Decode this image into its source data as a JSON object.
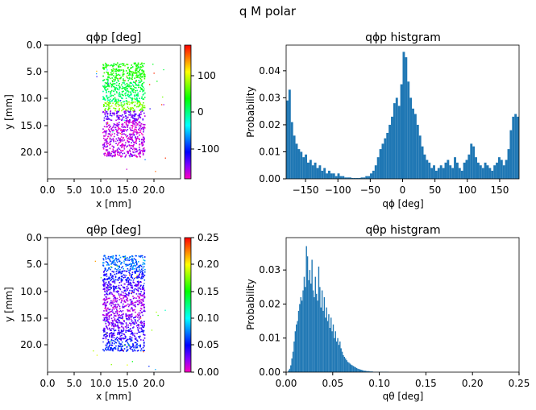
{
  "figure": {
    "title": "q M polar"
  },
  "colors": {
    "bar": "#1f77b4",
    "hsv_stops": [
      "#ff00bf",
      "#8000ff",
      "#0000ff",
      "#0080ff",
      "#00ffff",
      "#00ff80",
      "#00ff00",
      "#80ff00",
      "#ffff00",
      "#ff8000",
      "#ff0000"
    ]
  },
  "chart_data": [
    {
      "type": "heatmap",
      "title": "qϕp [deg]",
      "xlabel": "x [mm]",
      "ylabel": "y [mm]",
      "xlim": [
        0,
        25
      ],
      "ylim": [
        25,
        0
      ],
      "x_ticks": [
        "0.0",
        "5.0",
        "10.0",
        "15.0",
        "20.0"
      ],
      "y_ticks": [
        "0.0",
        "5.0",
        "10.0",
        "15.0",
        "20.0"
      ],
      "region": {
        "x": [
          10.3,
          18.2
        ],
        "y": [
          3.2,
          20.8
        ]
      },
      "bands": [
        {
          "y": [
            3.2,
            6.5
          ],
          "value": 40
        },
        {
          "y": [
            6.5,
            8.5
          ],
          "value": 20
        },
        {
          "y": [
            8.5,
            10.5
          ],
          "value": 5
        },
        {
          "y": [
            10.5,
            12.2
          ],
          "value": 70
        },
        {
          "y": [
            12.2,
            14.0
          ],
          "value": -140
        },
        {
          "y": [
            14.0,
            20.8
          ],
          "value": -160
        }
      ],
      "colorbar": {
        "vmin": -180,
        "vmax": 180,
        "ticks": [
          "-100",
          "0",
          "100"
        ],
        "tick_values": [
          -100,
          0,
          100
        ]
      }
    },
    {
      "type": "bar",
      "title": "qϕp histgram",
      "xlabel": "qϕ [deg]",
      "ylabel": "Probability",
      "xlim": [
        -180,
        180
      ],
      "ylim": [
        0,
        0.0495
      ],
      "x_ticks": [
        "−150",
        "−100",
        "−50",
        "0",
        "50",
        "100",
        "150"
      ],
      "x_tick_values": [
        -150,
        -100,
        -50,
        0,
        50,
        100,
        150
      ],
      "y_ticks": [
        "0.00",
        "0.01",
        "0.02",
        "0.03",
        "0.04"
      ],
      "y_tick_values": [
        0,
        0.01,
        0.02,
        0.03,
        0.04
      ],
      "bin_start": -180,
      "bin_width": 3.6,
      "values": [
        0.029,
        0.033,
        0.021,
        0.016,
        0.013,
        0.011,
        0.01,
        0.008,
        0.009,
        0.006,
        0.007,
        0.005,
        0.006,
        0.004,
        0.005,
        0.003,
        0.004,
        0.002,
        0.003,
        0.002,
        0.002,
        0.001,
        0.002,
        0.001,
        0.001,
        0.0005,
        0.0005,
        0.0005,
        0.0003,
        0.0003,
        0.0003,
        0.0003,
        0.0005,
        0.0005,
        0.001,
        0.001,
        0.002,
        0.003,
        0.005,
        0.008,
        0.011,
        0.013,
        0.015,
        0.017,
        0.02,
        0.023,
        0.028,
        0.03,
        0.027,
        0.035,
        0.047,
        0.045,
        0.036,
        0.03,
        0.026,
        0.024,
        0.02,
        0.016,
        0.012,
        0.009,
        0.007,
        0.006,
        0.004,
        0.005,
        0.003,
        0.004,
        0.005,
        0.004,
        0.006,
        0.007,
        0.005,
        0.004,
        0.008,
        0.006,
        0.004,
        0.003,
        0.006,
        0.007,
        0.009,
        0.013,
        0.012,
        0.008,
        0.006,
        0.005,
        0.004,
        0.006,
        0.005,
        0.004,
        0.003,
        0.005,
        0.006,
        0.008,
        0.007,
        0.005,
        0.007,
        0.011,
        0.018,
        0.023,
        0.024,
        0.023
      ]
    },
    {
      "type": "heatmap",
      "title": "qθp [deg]",
      "xlabel": "x [mm]",
      "ylabel": "y [mm]",
      "xlim": [
        0,
        25
      ],
      "ylim": [
        25,
        0
      ],
      "x_ticks": [
        "0.0",
        "5.0",
        "10.0",
        "15.0",
        "20.0"
      ],
      "y_ticks": [
        "0.0",
        "5.0",
        "10.0",
        "15.0",
        "20.0"
      ],
      "region": {
        "x": [
          10.3,
          18.2
        ],
        "y": [
          3.2,
          21.0
        ]
      },
      "bands": [
        {
          "y": [
            3.2,
            6.0
          ],
          "value": 0.07
        },
        {
          "y": [
            6.0,
            8.0
          ],
          "value": 0.05
        },
        {
          "y": [
            8.0,
            10.5
          ],
          "value": 0.035
        },
        {
          "y": [
            10.5,
            14.5
          ],
          "value": 0.02
        },
        {
          "y": [
            14.5,
            17.0
          ],
          "value": 0.03
        },
        {
          "y": [
            17.0,
            19.0
          ],
          "value": 0.04
        },
        {
          "y": [
            19.0,
            21.0
          ],
          "value": 0.055
        }
      ],
      "colorbar": {
        "vmin": 0,
        "vmax": 0.25,
        "ticks": [
          "0.00",
          "0.05",
          "0.10",
          "0.15",
          "0.20",
          "0.25"
        ],
        "tick_values": [
          0,
          0.05,
          0.1,
          0.15,
          0.2,
          0.25
        ]
      }
    },
    {
      "type": "bar",
      "title": "qθp histgram",
      "xlabel": "qθ [deg]",
      "ylabel": "Probability",
      "xlim": [
        0,
        0.25
      ],
      "ylim": [
        0,
        0.0395
      ],
      "x_ticks": [
        "0.00",
        "0.05",
        "0.10",
        "0.15",
        "0.20",
        "0.25"
      ],
      "x_tick_values": [
        0,
        0.05,
        0.1,
        0.15,
        0.2,
        0.25
      ],
      "y_ticks": [
        "0.00",
        "0.01",
        "0.02",
        "0.03"
      ],
      "y_tick_values": [
        0,
        0.01,
        0.02,
        0.03
      ],
      "bin_start": 0.002,
      "bin_width": 0.0012,
      "values": [
        0.0005,
        0.001,
        0.002,
        0.004,
        0.006,
        0.009,
        0.012,
        0.014,
        0.015,
        0.018,
        0.02,
        0.022,
        0.021,
        0.024,
        0.028,
        0.025,
        0.037,
        0.034,
        0.027,
        0.03,
        0.026,
        0.033,
        0.024,
        0.022,
        0.028,
        0.023,
        0.021,
        0.031,
        0.025,
        0.019,
        0.024,
        0.018,
        0.022,
        0.016,
        0.019,
        0.015,
        0.017,
        0.013,
        0.016,
        0.012,
        0.014,
        0.01,
        0.012,
        0.009,
        0.01,
        0.008,
        0.009,
        0.007,
        0.006,
        0.005,
        0.0045,
        0.004,
        0.0035,
        0.003,
        0.0028,
        0.0025,
        0.0022,
        0.002,
        0.0018,
        0.0016,
        0.0014,
        0.0012,
        0.001,
        0.0009,
        0.0008,
        0.0007,
        0.0006,
        0.0005,
        0.0004,
        0.0004,
        0.0003,
        0.0003,
        0.0003,
        0.0002,
        0.0002,
        0.0002,
        0.0001,
        0.0001,
        0.0001,
        0.0001,
        0.0001,
        0.0001,
        0.0001,
        0.0001,
        0.0001,
        0.0001,
        0.0001,
        0.0001,
        0.0001,
        0.0001
      ]
    }
  ]
}
